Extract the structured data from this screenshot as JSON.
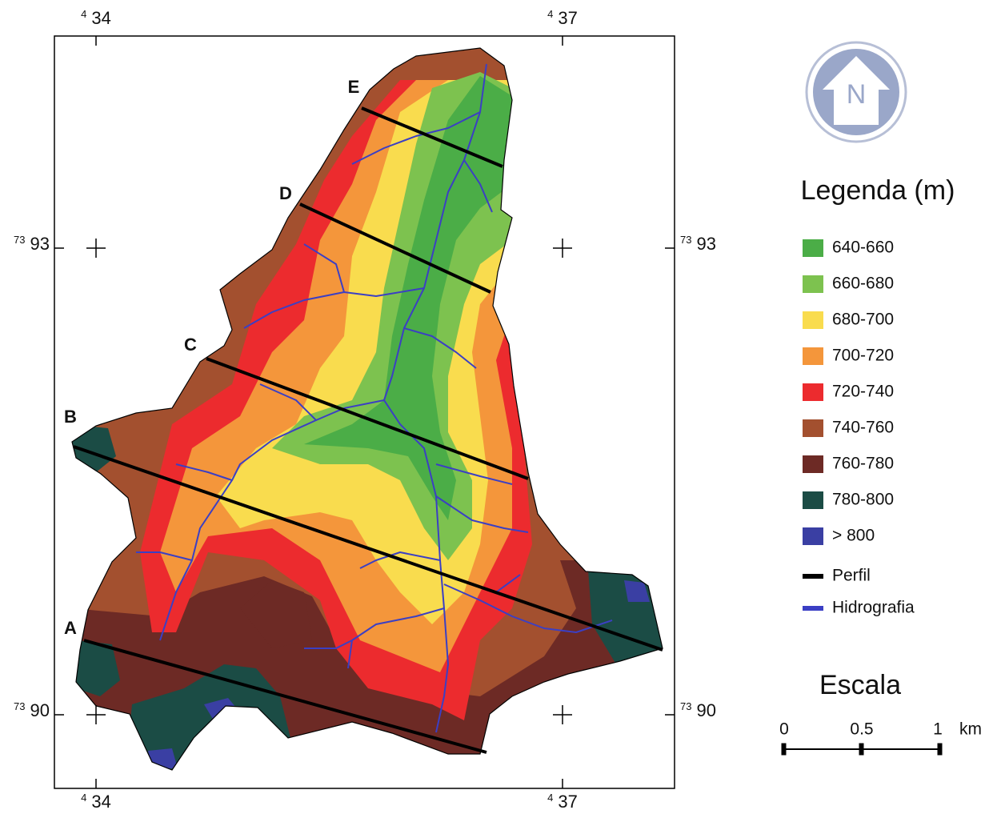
{
  "grid_labels": {
    "top": [
      {
        "sup": "4",
        "main": "34"
      },
      {
        "sup": "4",
        "main": "37"
      }
    ],
    "bottom": [
      {
        "sup": "4",
        "main": "34"
      },
      {
        "sup": "4",
        "main": "37"
      }
    ],
    "left": [
      {
        "sup": "73",
        "main": "93"
      },
      {
        "sup": "73",
        "main": "90"
      }
    ],
    "right": [
      {
        "sup": "73",
        "main": "93"
      },
      {
        "sup": "73",
        "main": "90"
      }
    ]
  },
  "profiles": [
    "E",
    "D",
    "C",
    "B",
    "A"
  ],
  "compass": "N",
  "legend": {
    "title": "Legenda (m)",
    "classes": [
      {
        "label": "640-660",
        "color": "#4bad47"
      },
      {
        "label": "660-680",
        "color": "#7dc24f"
      },
      {
        "label": "680-700",
        "color": "#f9dc4e"
      },
      {
        "label": "700-720",
        "color": "#f4963b"
      },
      {
        "label": "720-740",
        "color": "#ec2b2e"
      },
      {
        "label": "740-760",
        "color": "#a3502f"
      },
      {
        "label": "760-780",
        "color": "#6d2a25"
      },
      {
        "label": "780-800",
        "color": "#1b4c45"
      },
      {
        "label": "> 800",
        "color": "#3a3fa3"
      }
    ],
    "lines": [
      {
        "label": "Perfil",
        "color": "#000000"
      },
      {
        "label": "Hidrografia",
        "color": "#3b3fc4"
      }
    ]
  },
  "scale": {
    "title": "Escala",
    "labels": [
      "0",
      "0.5",
      "1"
    ],
    "unit": "km"
  }
}
